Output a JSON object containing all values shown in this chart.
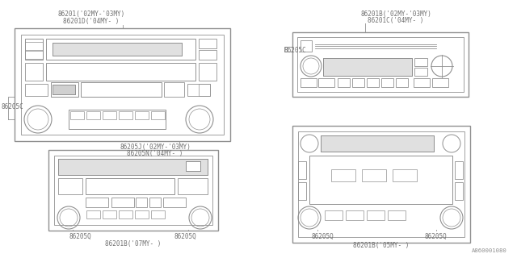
{
  "line_color": "#909090",
  "text_color": "#707070",
  "part_number_label": "A860001080",
  "labels": {
    "r1_top1": "86201('02MY-'03MY)",
    "r1_top2": "86201D('04MY- )",
    "r1_left": "86205C",
    "r1_bot1": "86205J('02MY-'03MY)",
    "r1_bot2": "86205N('04MY- )",
    "r2_top1": "86201B('02MY-'03MY)",
    "r2_top2": "86201C('04MY- )",
    "r2_left": "86205C",
    "r3_bl": "86205Q",
    "r3_br": "86205Q",
    "r3_bot": "86201B('07MY- )",
    "r4_bl": "86205Q",
    "r4_br": "86205Q",
    "r4_bot": "86201B('05MY- )"
  }
}
